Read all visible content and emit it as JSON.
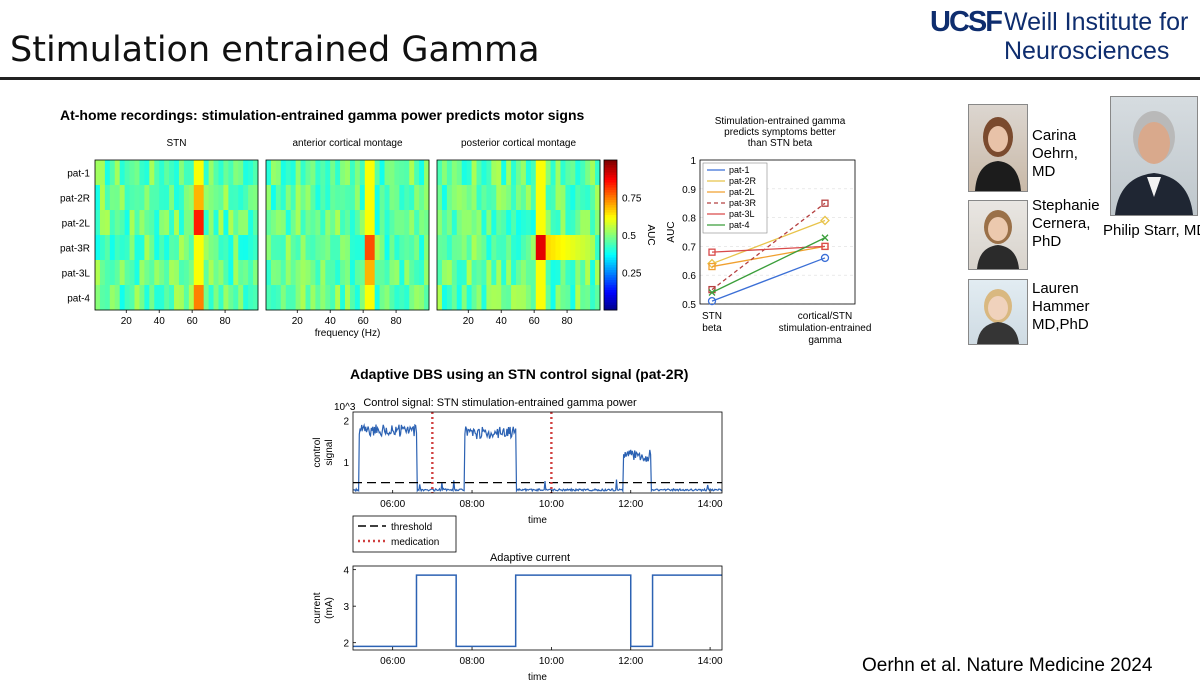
{
  "slide": {
    "title": "Stimulation entrained Gamma",
    "citation": "Oerhn et al. Nature Medicine 2024"
  },
  "logo": {
    "mark": "UCSF",
    "line1": "Weill Institute for",
    "line2": "Neurosciences"
  },
  "people": [
    {
      "name_lines": [
        "Carina",
        "Oehrn,",
        "MD"
      ]
    },
    {
      "name_lines": [
        "Stephanie",
        "Cernera,",
        "PhD"
      ]
    },
    {
      "name_lines": [
        "Lauren",
        "Hammer",
        "MD,PhD"
      ]
    },
    {
      "name_lines": [
        "Philip Starr, MD"
      ]
    }
  ],
  "figure": {
    "title": "At-home recordings: stimulation-entrained gamma power predicts motor signs",
    "adaptive_title": "Adaptive DBS using an STN control signal (pat-2R)"
  },
  "chart_data": [
    {
      "type": "heatmap",
      "panels": [
        "STN",
        "anterior cortical montage",
        "posterior cortical montage"
      ],
      "rows": [
        "pat-1",
        "pat-2R",
        "pat-2L",
        "pat-3R",
        "pat-3L",
        "pat-4"
      ],
      "xlabel": "frequency (Hz)",
      "xticks": [
        20,
        40,
        60,
        80
      ],
      "xlim": [
        1,
        100
      ],
      "colorbar": {
        "label": "AUC",
        "ticks": [
          0.25,
          0.5,
          0.75
        ],
        "range": [
          0,
          1
        ]
      },
      "hotspots": [
        {
          "panel": 0,
          "row": "pat-2L",
          "freq": 63,
          "auc": 0.85
        },
        {
          "panel": 0,
          "row": "pat-4",
          "freq": 63,
          "auc": 0.75
        },
        {
          "panel": 0,
          "row": "pat-2R",
          "freq": 63,
          "auc": 0.7
        },
        {
          "panel": 1,
          "row": "pat-3R",
          "freq": 63,
          "auc": 0.8
        },
        {
          "panel": 1,
          "row": "pat-3L",
          "freq": 63,
          "auc": 0.7
        },
        {
          "panel": 2,
          "row": "pat-3R",
          "freq": 62,
          "auc": 0.9
        }
      ]
    },
    {
      "type": "line",
      "title": "Stimulation-entrained gamma predicts symptoms better than STN beta",
      "title_lines": [
        "Stimulation-entrained gamma",
        "predicts symptoms better",
        "than STN beta"
      ],
      "categories": [
        "STN beta",
        "cortical/STN stimulation-entrained gamma"
      ],
      "category_lines": [
        [
          "STN",
          "beta"
        ],
        [
          "cortical/STN",
          "stimulation-entrained",
          "gamma"
        ]
      ],
      "ylabel": "AUC",
      "ylim": [
        0.5,
        1.0
      ],
      "yticks": [
        0.5,
        0.6,
        0.7,
        0.8,
        0.9,
        1
      ],
      "legend": "top-left",
      "series": [
        {
          "name": "pat-1",
          "values": [
            0.51,
            0.66
          ],
          "color": "#3b6fd6",
          "marker": "circle",
          "dashed": false
        },
        {
          "name": "pat-2R",
          "values": [
            0.64,
            0.79
          ],
          "color": "#e8c34a",
          "marker": "diamond",
          "dashed": false
        },
        {
          "name": "pat-2L",
          "values": [
            0.63,
            0.7
          ],
          "color": "#f0a030",
          "marker": "square",
          "dashed": false
        },
        {
          "name": "pat-3R",
          "values": [
            0.55,
            0.85
          ],
          "color": "#b54040",
          "marker": "square",
          "dashed": true
        },
        {
          "name": "pat-3L",
          "values": [
            0.68,
            0.7
          ],
          "color": "#d94b4b",
          "marker": "square",
          "dashed": false
        },
        {
          "name": "pat-4",
          "values": [
            0.54,
            0.73
          ],
          "color": "#3a9e3a",
          "marker": "x",
          "dashed": false
        }
      ]
    },
    {
      "type": "line",
      "title": "Control signal: STN stimulation-entrained gamma power",
      "ylabel": "control signal",
      "ylabel_lines": [
        "control",
        "signal"
      ],
      "yscale_label": "10^3",
      "xlabel": "time",
      "xticks": [
        "06:00",
        "08:00",
        "10:00",
        "12:00",
        "14:00"
      ],
      "xlim": [
        5.0,
        14.3
      ],
      "ylim": [
        0.25,
        2.2
      ],
      "yticks": [
        1,
        2
      ],
      "threshold": 0.5,
      "medication_times": [
        7.0,
        10.0
      ],
      "segments": [
        {
          "start": 5.15,
          "end": 6.6,
          "level": 1.75
        },
        {
          "start": 7.8,
          "end": 9.1,
          "level": 1.7
        },
        {
          "start": 11.8,
          "end": 12.5,
          "level": 1.15
        }
      ],
      "legend": [
        {
          "name": "threshold",
          "style": "dashed",
          "color": "#000000"
        },
        {
          "name": "medication",
          "style": "dotted",
          "color": "#d04040"
        }
      ]
    },
    {
      "type": "line",
      "title": "Adaptive current",
      "ylabel": "current (mA)",
      "ylabel_lines": [
        "current",
        "(mA)"
      ],
      "xlabel": "time",
      "xticks": [
        "06:00",
        "08:00",
        "10:00",
        "12:00",
        "14:00"
      ],
      "xlim": [
        5.0,
        14.3
      ],
      "ylim": [
        1.8,
        4.1
      ],
      "yticks": [
        2,
        3,
        4
      ],
      "steps": [
        [
          5.0,
          1.9
        ],
        [
          6.6,
          3.85
        ],
        [
          7.6,
          1.9
        ],
        [
          9.1,
          3.85
        ],
        [
          12.0,
          1.9
        ],
        [
          12.55,
          3.85
        ],
        [
          14.3,
          3.85
        ]
      ]
    }
  ]
}
